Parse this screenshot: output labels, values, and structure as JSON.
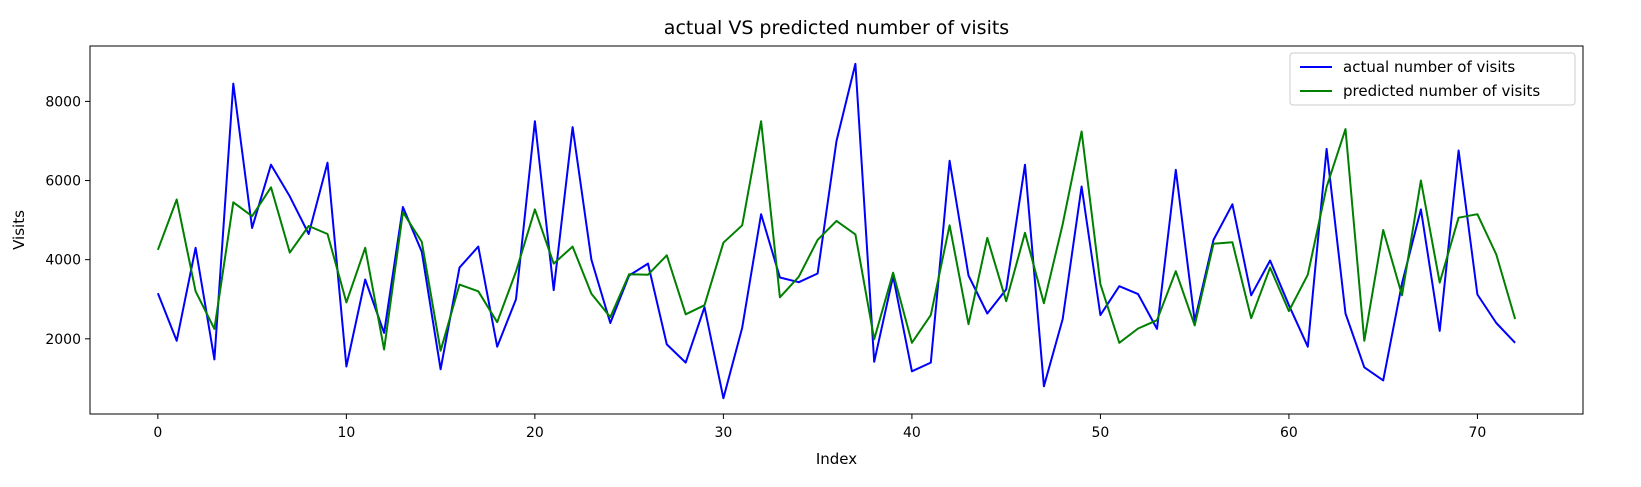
{
  "chart_data": {
    "type": "line",
    "title": "actual VS predicted number of visits",
    "xlabel": "Index",
    "ylabel": "Visits",
    "xlim": [
      -3.6,
      75.6
    ],
    "ylim": [
      100,
      9400
    ],
    "xticks": [
      0,
      10,
      20,
      30,
      40,
      50,
      60,
      70
    ],
    "yticks": [
      2000,
      4000,
      6000,
      8000
    ],
    "grid": false,
    "legend_position": "upper right",
    "x": [
      0,
      1,
      2,
      3,
      4,
      5,
      6,
      7,
      8,
      9,
      10,
      11,
      12,
      13,
      14,
      15,
      16,
      17,
      18,
      19,
      20,
      21,
      22,
      23,
      24,
      25,
      26,
      27,
      28,
      29,
      30,
      31,
      32,
      33,
      34,
      35,
      36,
      37,
      38,
      39,
      40,
      41,
      42,
      43,
      44,
      45,
      46,
      47,
      48,
      49,
      50,
      51,
      52,
      53,
      54,
      55,
      56,
      57,
      58,
      59,
      60,
      61,
      62,
      63,
      64,
      65,
      66,
      67,
      68,
      69,
      70,
      71,
      72
    ],
    "series": [
      {
        "name": "actual number of visits",
        "color": "#0000ff",
        "values": [
          3150,
          1950,
          4300,
          1480,
          8450,
          4800,
          6400,
          5600,
          4650,
          6450,
          1300,
          3500,
          2150,
          5330,
          4200,
          1230,
          3800,
          4330,
          1800,
          3000,
          7500,
          3230,
          7350,
          4000,
          2400,
          3600,
          3900,
          1860,
          1400,
          2800,
          500,
          2280,
          5150,
          3550,
          3430,
          3650,
          7000,
          8950,
          1420,
          3580,
          1180,
          1400,
          6500,
          3600,
          2640,
          3250,
          6400,
          800,
          2500,
          5850,
          2600,
          3330,
          3130,
          2250,
          6270,
          2450,
          4500,
          5400,
          3100,
          3980,
          2850,
          1800,
          6800,
          2640,
          1280,
          950,
          3400,
          5270,
          2200,
          6760,
          3120,
          2400,
          1900
        ]
      },
      {
        "name": "predicted number of visits",
        "color": "#008000",
        "values": [
          4250,
          5520,
          3200,
          2250,
          5450,
          5100,
          5830,
          4180,
          4850,
          4650,
          2920,
          4300,
          1730,
          5200,
          4450,
          1700,
          3370,
          3200,
          2420,
          3700,
          5270,
          3900,
          4330,
          3140,
          2550,
          3630,
          3620,
          4110,
          2620,
          2850,
          4430,
          4870,
          7500,
          3050,
          3570,
          4500,
          4980,
          4640,
          1990,
          3670,
          1900,
          2600,
          4870,
          2370,
          4550,
          2950,
          4680,
          2900,
          4900,
          7240,
          3380,
          1900,
          2260,
          2470,
          3710,
          2340,
          4400,
          4440,
          2520,
          3800,
          2700,
          3620,
          5840,
          7300,
          1950,
          4750,
          3100,
          6000,
          3420,
          5060,
          5150,
          4130,
          2500
        ]
      }
    ]
  }
}
